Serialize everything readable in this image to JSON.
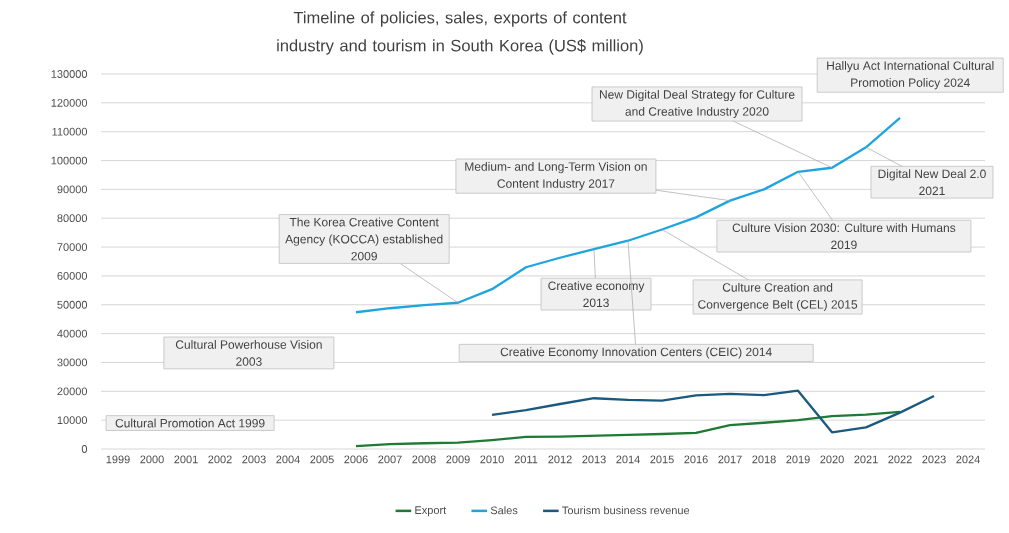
{
  "chart_data": {
    "type": "line",
    "title": "Timeline of policies, sales, exports of content industry and tourism in South Korea (US$ million)",
    "xlim": [
      1998.5,
      2024.5
    ],
    "xticks": [
      1999,
      2000,
      2001,
      2002,
      2003,
      2004,
      2005,
      2006,
      2007,
      2008,
      2009,
      2010,
      2011,
      2012,
      2013,
      2014,
      2015,
      2016,
      2017,
      2018,
      2019,
      2020,
      2021,
      2022,
      2023,
      2024
    ],
    "ylim": [
      0,
      130000
    ],
    "yticks": [
      0,
      10000,
      20000,
      30000,
      40000,
      50000,
      60000,
      70000,
      80000,
      90000,
      100000,
      110000,
      120000,
      130000
    ],
    "grid": "y",
    "legend": "bottom",
    "marker": "none",
    "line_style": "solid",
    "series": [
      {
        "name": "Export",
        "color": "#1e7a34",
        "x": [
          2006,
          2007,
          2008,
          2009,
          2010,
          2011,
          2012,
          2013,
          2014,
          2015,
          2016,
          2017,
          2018,
          2019,
          2020,
          2021,
          2022
        ],
        "values": [
          1000,
          1700,
          2000,
          2200,
          3100,
          4200,
          4300,
          4600,
          4900,
          5200,
          5600,
          8300,
          9100,
          10000,
          11400,
          11900,
          12900
        ]
      },
      {
        "name": "Sales",
        "color": "#1ea5e0",
        "x": [
          2006,
          2007,
          2008,
          2009,
          2010,
          2011,
          2012,
          2013,
          2014,
          2015,
          2016,
          2017,
          2018,
          2019,
          2020,
          2021,
          2022
        ],
        "values": [
          47400,
          48800,
          49900,
          50700,
          55400,
          63000,
          66300,
          69300,
          72200,
          76100,
          80300,
          86100,
          90000,
          96100,
          97500,
          104600,
          114800
        ]
      },
      {
        "name": "Tourism business revenue",
        "color": "#1a5a80",
        "x": [
          2010,
          2011,
          2012,
          2013,
          2014,
          2015,
          2016,
          2017,
          2018,
          2019,
          2020,
          2021,
          2022,
          2023
        ],
        "values": [
          11800,
          13500,
          15600,
          17600,
          17000,
          16800,
          18600,
          19100,
          18700,
          20200,
          5800,
          7500,
          12600,
          18400
        ]
      }
    ],
    "annotations": [
      "Cultural Promotion Act 1999",
      "Cultural Powerhouse Vision 2003",
      {
        "text": "The Korea Creative Content Agency (KOCCA) established 2009",
        "x": 2009,
        "y": 50700
      },
      {
        "text": "Medium- and Long-Term Vision on Content Industry 2017",
        "x": 2017,
        "y": 86100
      },
      {
        "text": "Creative economy 2013",
        "x": 2013,
        "y": 69300
      },
      {
        "text": "Creative Economy Innovation  Centers (CEIC) 2014",
        "x": 2014,
        "y": 72200
      },
      {
        "text": "Culture Creation and Convergence Belt (CEL) 2015",
        "x": 2015,
        "y": 76100
      },
      {
        "text": "Culture Vision 2030: Culture with Humans 2019",
        "x": 2019,
        "y": 96100
      },
      {
        "text": "New Digital Deal Strategy for Culture and Creative Industry 2020",
        "x": 2020,
        "y": 97500
      },
      {
        "text": "Digital New Deal 2.0 2021",
        "x": 2021,
        "y": 104600
      },
      "Hallyu Act International Cultural Promotion Policy 2024"
    ]
  }
}
